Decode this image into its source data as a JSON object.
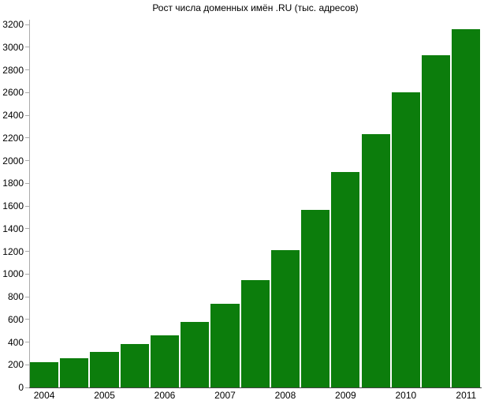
{
  "chart_data": {
    "type": "bar",
    "title": "Рост числа доменных имён .RU (тыс. адресов)",
    "categories": [
      "2004",
      "2004.5",
      "2005",
      "2005.5",
      "2006",
      "2006.5",
      "2007",
      "2007.5",
      "2008",
      "2008.5",
      "2009",
      "2009.5",
      "2010",
      "2010.5",
      "2011"
    ],
    "values": [
      220,
      260,
      310,
      380,
      460,
      580,
      740,
      945,
      1210,
      1565,
      1900,
      2230,
      2600,
      2930,
      3155
    ],
    "x_tick_labels": [
      "2004",
      "2005",
      "2006",
      "2007",
      "2008",
      "2009",
      "2010",
      "2011"
    ],
    "y_ticks": [
      0,
      200,
      400,
      600,
      800,
      1000,
      1200,
      1400,
      1600,
      1800,
      2000,
      2200,
      2400,
      2600,
      2800,
      3000,
      3200
    ],
    "ylim": [
      0,
      3200
    ],
    "xlabel": "",
    "ylabel": "",
    "grid": false,
    "legend": "none",
    "bar_color": "#0c7d0c",
    "axis_color": "#aaaaaa",
    "baseline_color": "#444444",
    "text_color": "#000000"
  }
}
